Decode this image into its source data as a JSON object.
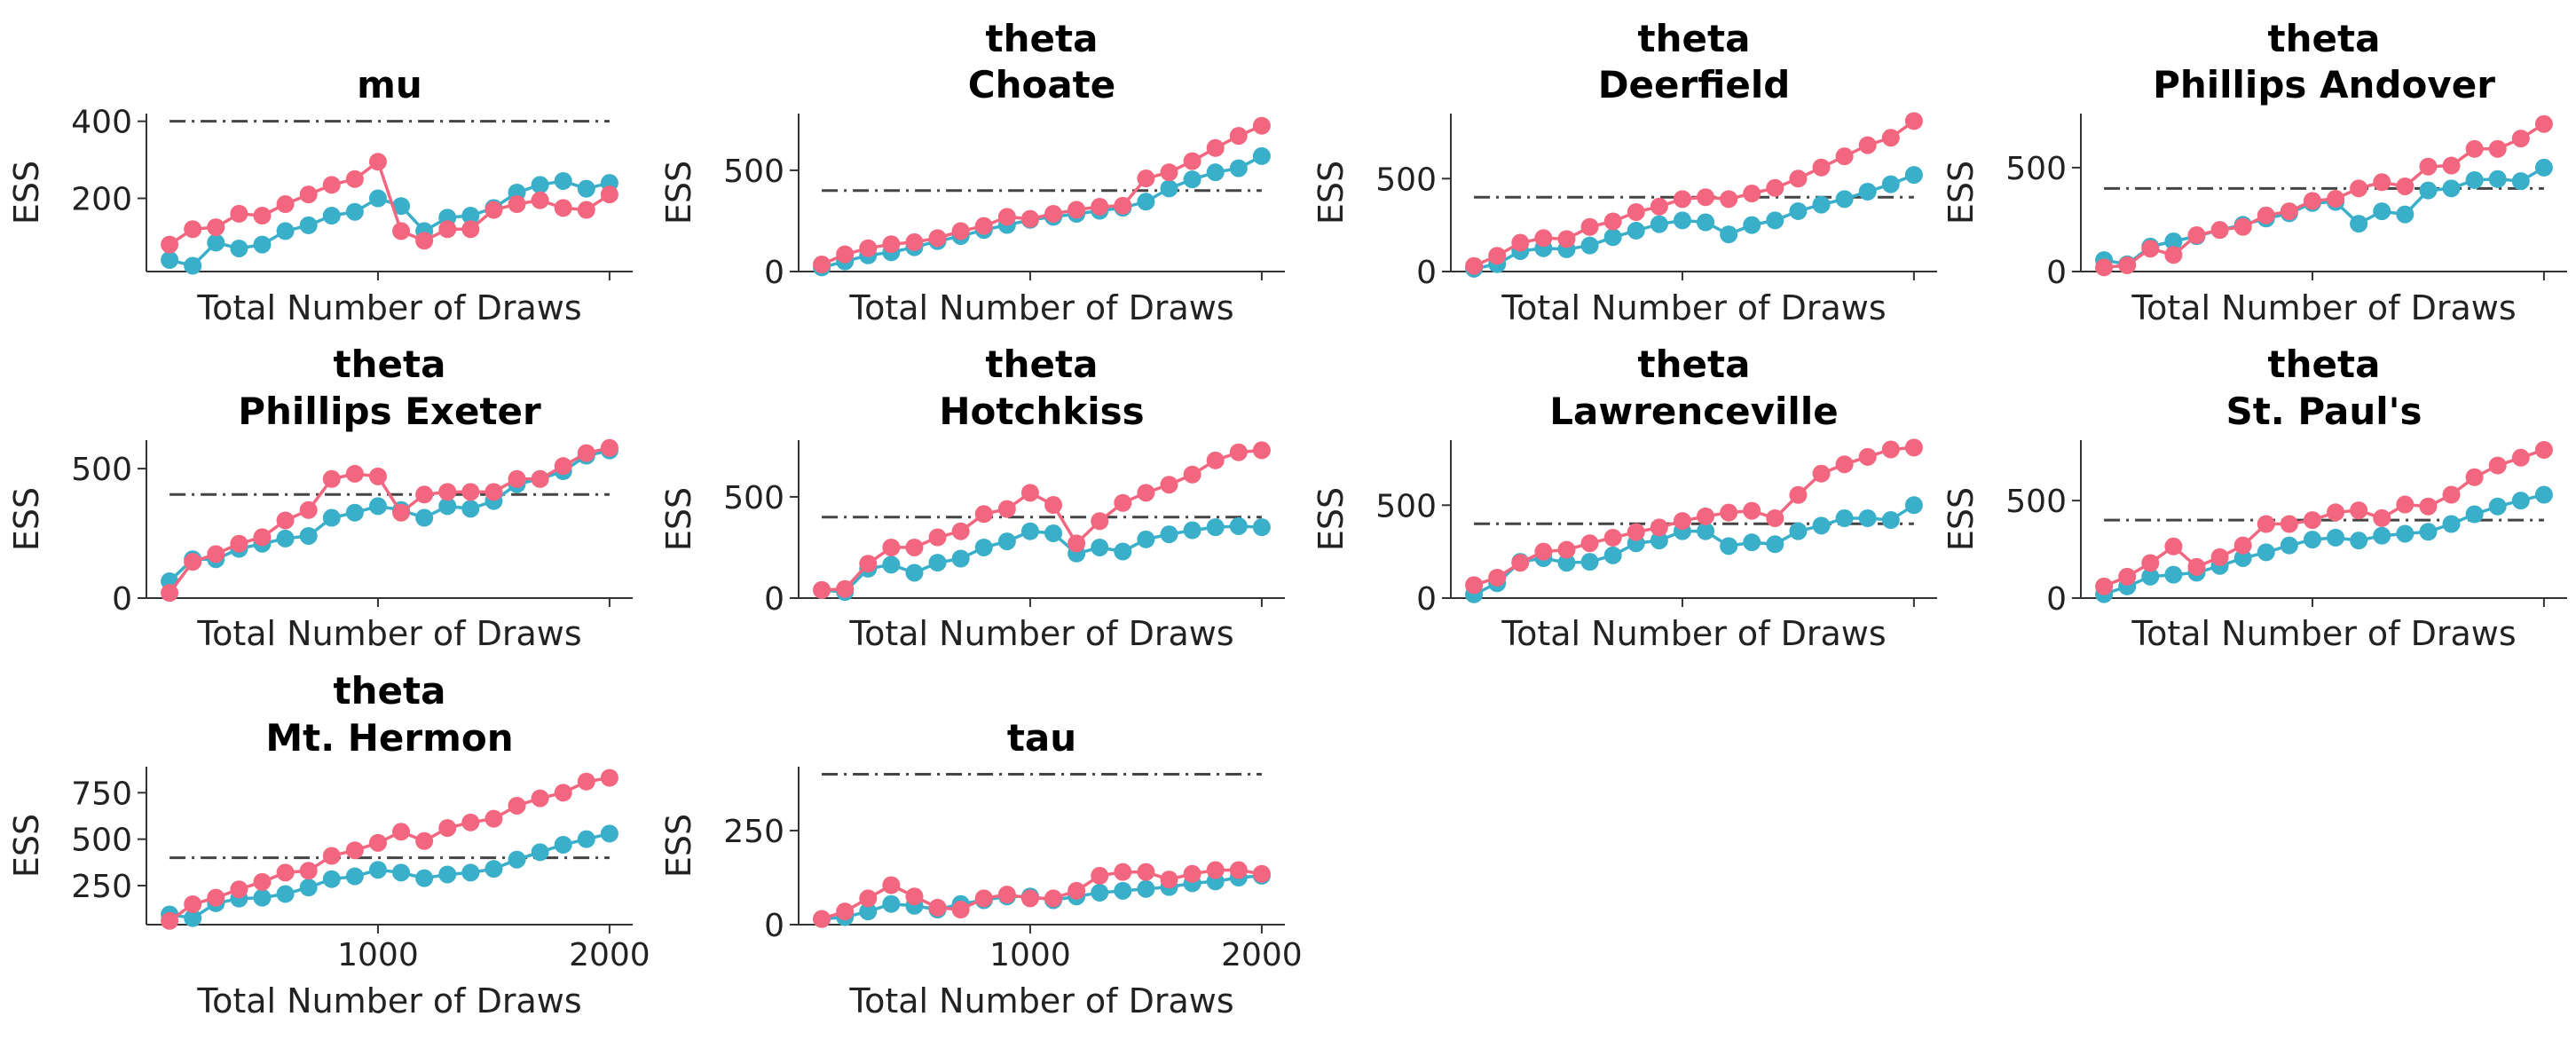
{
  "figure": {
    "colors": {
      "bulk": "#3aafc9",
      "tail": "#f2677f",
      "reference": "#444444"
    },
    "reference_ess": 400,
    "xlabel": "Total Number of Draws",
    "ylabel": "ESS"
  },
  "chart_data": [
    {
      "type": "line",
      "title": [
        "mu"
      ],
      "xlabel": "Total Number of Draws",
      "ylabel": "ESS",
      "xlim": [
        0,
        2100
      ],
      "ylim": [
        10,
        420
      ],
      "yticks": [
        200,
        400
      ],
      "ytick_labels": [
        "200",
        "400"
      ],
      "xticks": [
        1000,
        2000
      ],
      "xtick_labels": [],
      "x": [
        100,
        200,
        300,
        400,
        500,
        600,
        700,
        800,
        900,
        1000,
        1100,
        1200,
        1300,
        1400,
        1500,
        1600,
        1700,
        1800,
        1900,
        2000
      ],
      "series": [
        {
          "color": "#3aafc9",
          "values": [
            40,
            25,
            85,
            70,
            80,
            115,
            130,
            155,
            165,
            200,
            180,
            115,
            150,
            155,
            175,
            215,
            235,
            245,
            225,
            240
          ]
        },
        {
          "color": "#f2677f",
          "values": [
            80,
            120,
            125,
            160,
            155,
            185,
            210,
            235,
            250,
            295,
            115,
            90,
            120,
            120,
            170,
            185,
            195,
            175,
            170,
            210
          ]
        }
      ],
      "reference_line": 400
    },
    {
      "type": "line",
      "title": [
        "theta",
        "Choate"
      ],
      "xlabel": "Total Number of Draws",
      "ylabel": "ESS",
      "xlim": [
        0,
        2100
      ],
      "ylim": [
        0,
        780
      ],
      "yticks": [
        0,
        500
      ],
      "ytick_labels": [
        "0",
        "500"
      ],
      "xticks": [
        1000,
        2000
      ],
      "xtick_labels": [],
      "x": [
        100,
        200,
        300,
        400,
        500,
        600,
        700,
        800,
        900,
        1000,
        1100,
        1200,
        1300,
        1400,
        1500,
        1600,
        1700,
        1800,
        1900,
        2000
      ],
      "series": [
        {
          "color": "#3aafc9",
          "values": [
            20,
            50,
            80,
            95,
            120,
            150,
            175,
            205,
            230,
            255,
            270,
            285,
            300,
            315,
            345,
            410,
            455,
            490,
            510,
            570
          ]
        },
        {
          "color": "#f2677f",
          "values": [
            35,
            85,
            115,
            135,
            145,
            165,
            200,
            225,
            270,
            260,
            285,
            305,
            320,
            325,
            460,
            490,
            545,
            610,
            670,
            720
          ]
        }
      ],
      "reference_line": 400
    },
    {
      "type": "line",
      "title": [
        "theta",
        "Deerfield"
      ],
      "xlabel": "Total Number of Draws",
      "ylabel": "ESS",
      "xlim": [
        0,
        2100
      ],
      "ylim": [
        0,
        850
      ],
      "yticks": [
        0,
        500
      ],
      "ytick_labels": [
        "0",
        "500"
      ],
      "xticks": [
        1000,
        2000
      ],
      "xtick_labels": [],
      "x": [
        100,
        200,
        300,
        400,
        500,
        600,
        700,
        800,
        900,
        1000,
        1100,
        1200,
        1300,
        1400,
        1500,
        1600,
        1700,
        1800,
        1900,
        2000
      ],
      "series": [
        {
          "color": "#3aafc9",
          "values": [
            15,
            40,
            110,
            125,
            120,
            140,
            185,
            220,
            255,
            275,
            265,
            200,
            250,
            275,
            325,
            360,
            390,
            430,
            470,
            520
          ]
        },
        {
          "color": "#f2677f",
          "values": [
            30,
            85,
            155,
            180,
            175,
            240,
            270,
            320,
            350,
            390,
            400,
            390,
            420,
            450,
            500,
            560,
            620,
            680,
            720,
            810
          ]
        }
      ],
      "reference_line": 400
    },
    {
      "type": "line",
      "title": [
        "theta",
        "Phillips Andover"
      ],
      "xlabel": "Total Number of Draws",
      "ylabel": "ESS",
      "xlim": [
        0,
        2100
      ],
      "ylim": [
        0,
        760
      ],
      "yticks": [
        0,
        500
      ],
      "ytick_labels": [
        "0",
        "500"
      ],
      "xticks": [
        1000,
        2000
      ],
      "xtick_labels": [],
      "x": [
        100,
        200,
        300,
        400,
        500,
        600,
        700,
        800,
        900,
        1000,
        1100,
        1200,
        1300,
        1400,
        1500,
        1600,
        1700,
        1800,
        1900,
        2000
      ],
      "series": [
        {
          "color": "#3aafc9",
          "values": [
            55,
            35,
            120,
            145,
            170,
            200,
            225,
            255,
            280,
            330,
            335,
            230,
            290,
            275,
            390,
            400,
            440,
            445,
            435,
            500
          ]
        },
        {
          "color": "#f2677f",
          "values": [
            20,
            30,
            110,
            80,
            175,
            200,
            215,
            270,
            290,
            340,
            350,
            400,
            430,
            410,
            505,
            510,
            590,
            590,
            640,
            710
          ]
        }
      ],
      "reference_line": 400
    },
    {
      "type": "line",
      "title": [
        "theta",
        "Phillips Exeter"
      ],
      "xlabel": "Total Number of Draws",
      "ylabel": "ESS",
      "xlim": [
        0,
        2100
      ],
      "ylim": [
        0,
        610
      ],
      "yticks": [
        0,
        500
      ],
      "ytick_labels": [
        "0",
        "500"
      ],
      "xticks": [
        1000,
        2000
      ],
      "xtick_labels": [],
      "x": [
        100,
        200,
        300,
        400,
        500,
        600,
        700,
        800,
        900,
        1000,
        1100,
        1200,
        1300,
        1400,
        1500,
        1600,
        1700,
        1800,
        1900,
        2000
      ],
      "series": [
        {
          "color": "#3aafc9",
          "values": [
            65,
            150,
            150,
            190,
            210,
            230,
            240,
            310,
            330,
            355,
            340,
            310,
            355,
            345,
            375,
            440,
            460,
            490,
            550,
            570
          ]
        },
        {
          "color": "#f2677f",
          "values": [
            20,
            140,
            170,
            210,
            235,
            300,
            340,
            460,
            480,
            470,
            330,
            400,
            410,
            410,
            410,
            460,
            460,
            510,
            560,
            580
          ]
        }
      ],
      "reference_line": 400
    },
    {
      "type": "line",
      "title": [
        "theta",
        "Hotchkiss"
      ],
      "xlabel": "Total Number of Draws",
      "ylabel": "ESS",
      "xlim": [
        0,
        2100
      ],
      "ylim": [
        0,
        780
      ],
      "yticks": [
        0,
        500
      ],
      "ytick_labels": [
        "0",
        "500"
      ],
      "xticks": [
        1000,
        2000
      ],
      "xtick_labels": [],
      "x": [
        100,
        200,
        300,
        400,
        500,
        600,
        700,
        800,
        900,
        1000,
        1100,
        1200,
        1300,
        1400,
        1500,
        1600,
        1700,
        1800,
        1900,
        2000
      ],
      "series": [
        {
          "color": "#3aafc9",
          "values": [
            40,
            30,
            145,
            165,
            125,
            175,
            195,
            250,
            280,
            330,
            320,
            220,
            250,
            230,
            290,
            315,
            335,
            350,
            355,
            350
          ]
        },
        {
          "color": "#f2677f",
          "values": [
            40,
            45,
            170,
            250,
            250,
            300,
            330,
            415,
            440,
            520,
            460,
            270,
            380,
            470,
            520,
            560,
            610,
            680,
            720,
            730
          ]
        }
      ],
      "reference_line": 400
    },
    {
      "type": "line",
      "title": [
        "theta",
        "Lawrenceville"
      ],
      "xlabel": "Total Number of Draws",
      "ylabel": "ESS",
      "xlim": [
        0,
        2100
      ],
      "ylim": [
        0,
        850
      ],
      "yticks": [
        0,
        500
      ],
      "ytick_labels": [
        "0",
        "500"
      ],
      "xticks": [
        1000,
        2000
      ],
      "xtick_labels": [],
      "x": [
        100,
        200,
        300,
        400,
        500,
        600,
        700,
        800,
        900,
        1000,
        1100,
        1200,
        1300,
        1400,
        1500,
        1600,
        1700,
        1800,
        1900,
        2000
      ],
      "series": [
        {
          "color": "#3aafc9",
          "values": [
            20,
            80,
            195,
            215,
            190,
            195,
            230,
            295,
            310,
            360,
            360,
            280,
            300,
            290,
            360,
            390,
            430,
            430,
            420,
            500
          ]
        },
        {
          "color": "#f2677f",
          "values": [
            70,
            110,
            190,
            250,
            260,
            295,
            325,
            355,
            380,
            415,
            440,
            460,
            470,
            430,
            555,
            670,
            720,
            760,
            800,
            810
          ]
        }
      ],
      "reference_line": 400
    },
    {
      "type": "line",
      "title": [
        "theta",
        "St. Paul's"
      ],
      "xlabel": "Total Number of Draws",
      "ylabel": "ESS",
      "xlim": [
        0,
        2100
      ],
      "ylim": [
        0,
        810
      ],
      "yticks": [
        0,
        500
      ],
      "ytick_labels": [
        "0",
        "500"
      ],
      "xticks": [
        1000,
        2000
      ],
      "xtick_labels": [],
      "x": [
        100,
        200,
        300,
        400,
        500,
        600,
        700,
        800,
        900,
        1000,
        1100,
        1200,
        1300,
        1400,
        1500,
        1600,
        1700,
        1800,
        1900,
        2000
      ],
      "series": [
        {
          "color": "#3aafc9",
          "values": [
            20,
            60,
            110,
            120,
            130,
            165,
            205,
            235,
            270,
            300,
            310,
            295,
            320,
            330,
            340,
            380,
            430,
            470,
            500,
            530
          ]
        },
        {
          "color": "#f2677f",
          "values": [
            60,
            110,
            180,
            265,
            160,
            210,
            270,
            380,
            380,
            400,
            440,
            450,
            410,
            480,
            470,
            530,
            620,
            680,
            720,
            760
          ]
        }
      ],
      "reference_line": 400
    },
    {
      "type": "line",
      "title": [
        "theta",
        "Mt. Hermon"
      ],
      "xlabel": "Total Number of Draws",
      "ylabel": "ESS",
      "xlim": [
        0,
        2100
      ],
      "ylim": [
        40,
        890
      ],
      "yticks": [
        250,
        500,
        750
      ],
      "ytick_labels": [
        "250",
        "500",
        "750"
      ],
      "xticks": [
        1000,
        2000
      ],
      "xtick_labels": [
        "1000",
        "2000"
      ],
      "x": [
        100,
        200,
        300,
        400,
        500,
        600,
        700,
        800,
        900,
        1000,
        1100,
        1200,
        1300,
        1400,
        1500,
        1600,
        1700,
        1800,
        1900,
        2000
      ],
      "series": [
        {
          "color": "#3aafc9",
          "values": [
            95,
            75,
            155,
            180,
            185,
            205,
            240,
            285,
            300,
            335,
            320,
            290,
            310,
            320,
            340,
            390,
            430,
            470,
            500,
            530
          ]
        },
        {
          "color": "#f2677f",
          "values": [
            60,
            150,
            185,
            230,
            270,
            320,
            330,
            410,
            440,
            480,
            540,
            490,
            560,
            590,
            610,
            680,
            720,
            750,
            810,
            830
          ]
        }
      ],
      "reference_line": 400
    },
    {
      "type": "line",
      "title": [
        "tau"
      ],
      "xlabel": "Total Number of Draws",
      "ylabel": "ESS",
      "xlim": [
        0,
        2100
      ],
      "ylim": [
        0,
        420
      ],
      "yticks": [
        0,
        250
      ],
      "ytick_labels": [
        "0",
        "250"
      ],
      "xticks": [
        1000,
        2000
      ],
      "xtick_labels": [
        "1000",
        "2000"
      ],
      "x": [
        100,
        200,
        300,
        400,
        500,
        600,
        700,
        800,
        900,
        1000,
        1100,
        1200,
        1300,
        1400,
        1500,
        1600,
        1700,
        1800,
        1900,
        2000
      ],
      "series": [
        {
          "color": "#3aafc9",
          "values": [
            15,
            20,
            35,
            55,
            50,
            40,
            55,
            65,
            75,
            75,
            65,
            75,
            85,
            90,
            95,
            100,
            110,
            115,
            125,
            130
          ]
        },
        {
          "color": "#f2677f",
          "values": [
            15,
            35,
            70,
            105,
            75,
            45,
            40,
            70,
            80,
            70,
            70,
            90,
            130,
            140,
            140,
            120,
            135,
            145,
            145,
            135
          ]
        }
      ],
      "reference_line": 400
    }
  ]
}
